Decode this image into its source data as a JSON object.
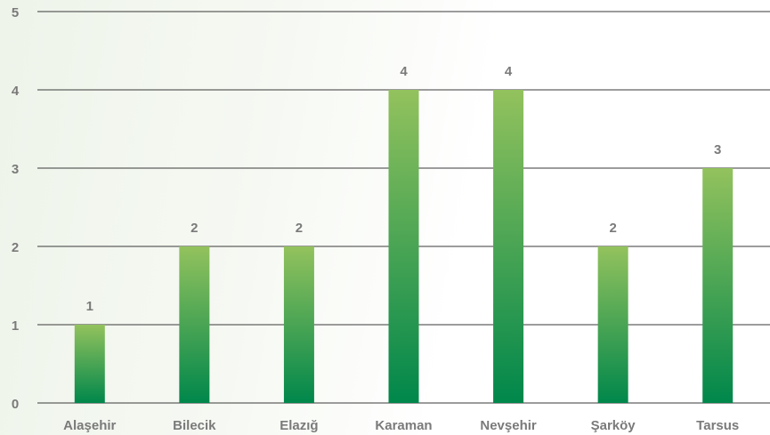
{
  "chart_data": {
    "type": "bar",
    "categories": [
      "Alaşehir",
      "Bilecik",
      "Elazığ",
      "Karaman",
      "Nevşehir",
      "Şarköy",
      "Tarsus"
    ],
    "values": [
      1,
      2,
      2,
      4,
      4,
      2,
      3
    ],
    "color": [
      "#93c25d",
      "#00874b"
    ],
    "ylim": [
      0,
      5
    ],
    "yticks": [
      0,
      1,
      2,
      3,
      4,
      5
    ],
    "grid": true
  }
}
